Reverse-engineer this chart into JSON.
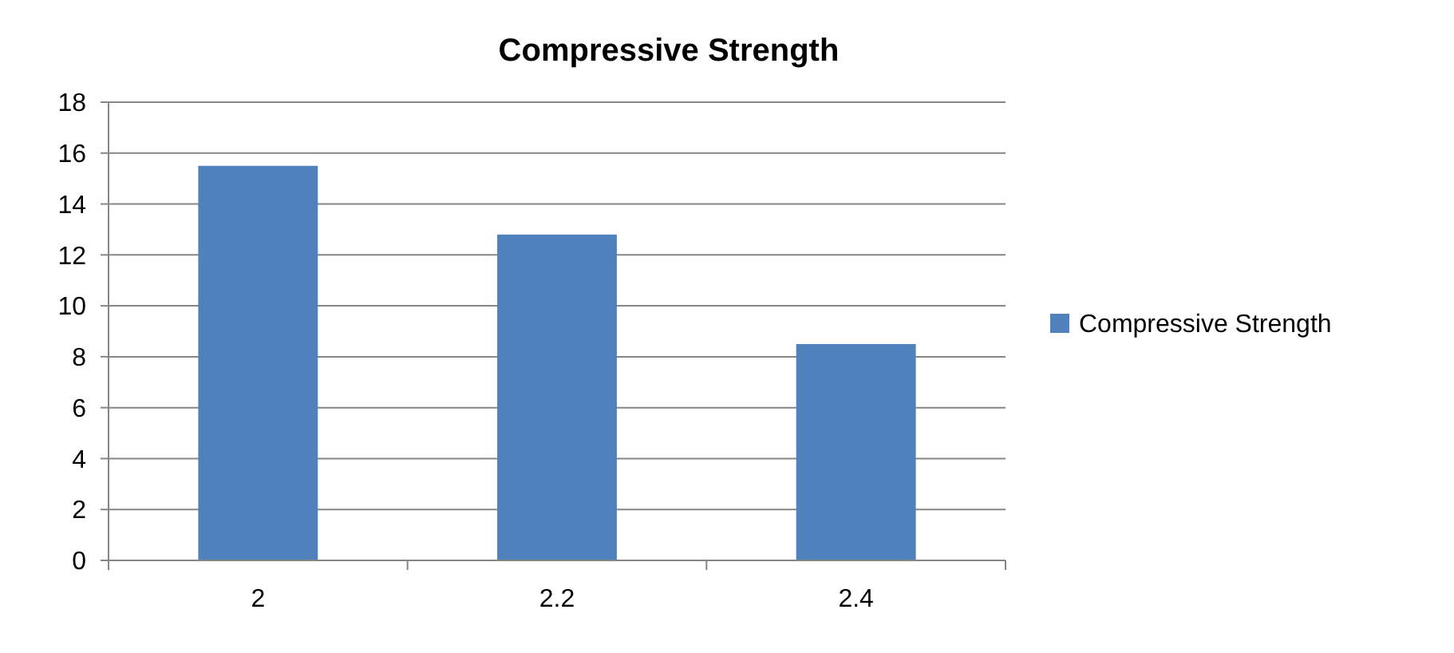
{
  "chart_data": {
    "type": "bar",
    "title": "Compressive Strength",
    "categories": [
      "2",
      "2.2",
      "2.4"
    ],
    "series": [
      {
        "name": "Compressive Strength",
        "color": "#4f81bd",
        "values": [
          15.5,
          12.8,
          8.5
        ]
      }
    ],
    "ylim": [
      0,
      18
    ],
    "yticks": [
      0,
      2,
      4,
      6,
      8,
      10,
      12,
      14,
      16,
      18
    ],
    "grid": "y",
    "legend": "right"
  }
}
